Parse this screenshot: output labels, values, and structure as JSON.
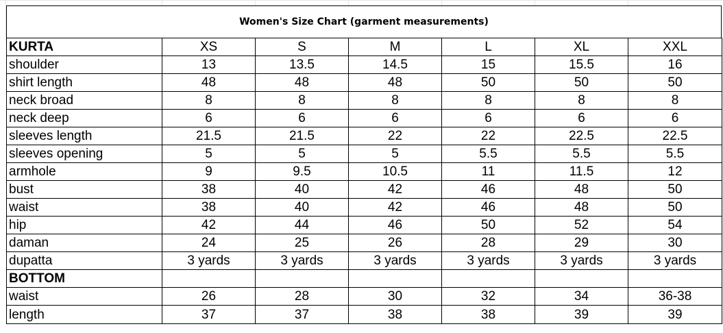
{
  "title": "Women's Size Chart (garment measurements)",
  "sections": [
    {
      "name": "KURTA",
      "sizes": [
        "XS",
        "S",
        "M",
        "L",
        "XL",
        "XXL"
      ],
      "rows": [
        {
          "label": "shoulder",
          "values": [
            "13",
            "13.5",
            "14.5",
            "15",
            "15.5",
            "16"
          ]
        },
        {
          "label": "shirt length",
          "values": [
            "48",
            "48",
            "48",
            "50",
            "50",
            "50"
          ]
        },
        {
          "label": "neck broad",
          "values": [
            "8",
            "8",
            "8",
            "8",
            "8",
            "8"
          ]
        },
        {
          "label": "neck deep",
          "values": [
            "6",
            "6",
            "6",
            "6",
            "6",
            "6"
          ]
        },
        {
          "label": "sleeves length",
          "values": [
            "21.5",
            "21.5",
            "22",
            "22",
            "22.5",
            "22.5"
          ]
        },
        {
          "label": "sleeves opening",
          "values": [
            "5",
            "5",
            "5",
            "5.5",
            "5.5",
            "5.5"
          ]
        },
        {
          "label": "armhole",
          "values": [
            "9",
            "9.5",
            "10.5",
            "11",
            "11.5",
            "12"
          ]
        },
        {
          "label": "bust",
          "values": [
            "38",
            "40",
            "42",
            "46",
            "48",
            "50"
          ]
        },
        {
          "label": "waist",
          "values": [
            "38",
            "40",
            "42",
            "46",
            "48",
            "50"
          ]
        },
        {
          "label": "hip",
          "values": [
            "42",
            "44",
            "46",
            "50",
            "52",
            "54"
          ]
        },
        {
          "label": "daman",
          "values": [
            "24",
            "25",
            "26",
            "28",
            "29",
            "30"
          ]
        },
        {
          "label": "dupatta",
          "values": [
            "3 yards",
            "3 yards",
            "3 yards",
            "3 yards",
            "3 yards",
            "3 yards"
          ]
        }
      ]
    },
    {
      "name": "BOTTOM",
      "sizes": [
        "",
        "",
        "",
        "",
        "",
        ""
      ],
      "rows": [
        {
          "label": "waist",
          "values": [
            "26",
            "28",
            "30",
            "32",
            "34",
            "36-38"
          ]
        },
        {
          "label": "length",
          "values": [
            "37",
            "37",
            "38",
            "38",
            "39",
            "39"
          ]
        }
      ]
    }
  ]
}
